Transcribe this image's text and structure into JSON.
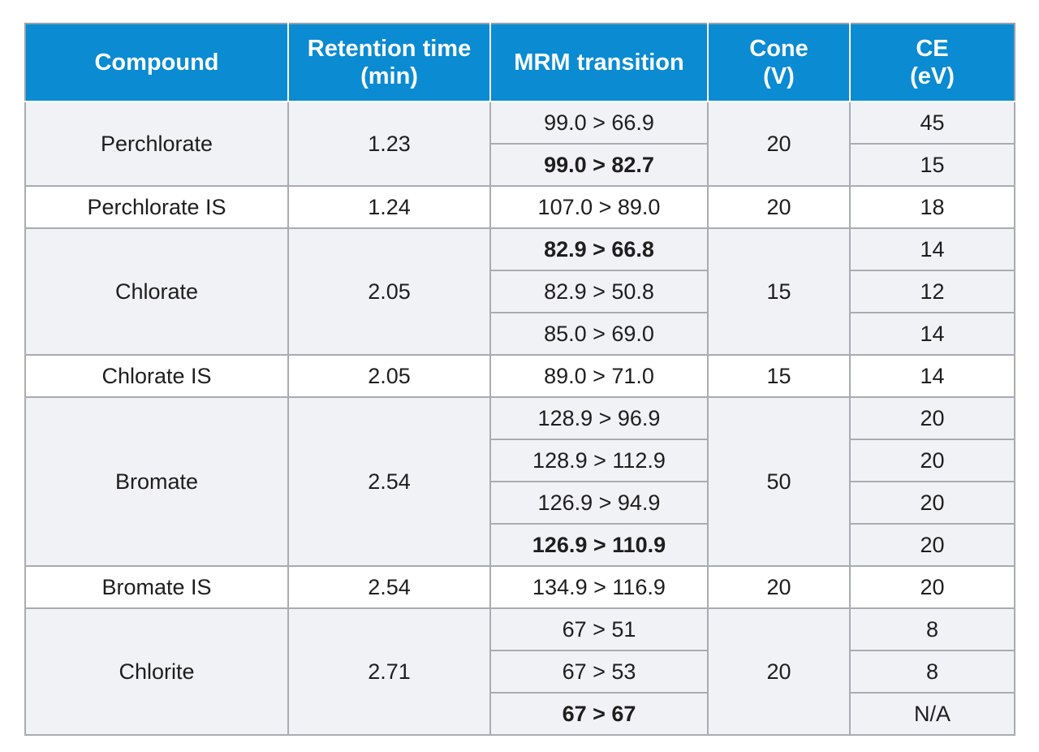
{
  "headers": [
    {
      "line1": "Compound",
      "line2": ""
    },
    {
      "line1": "Retention time",
      "line2": "(min)"
    },
    {
      "line1": "MRM transition",
      "line2": ""
    },
    {
      "line1": "Cone",
      "line2": "(V)"
    },
    {
      "line1": "CE",
      "line2": "(eV)"
    }
  ],
  "rows": [
    {
      "compound": "Perchlorate",
      "rt": "1.23",
      "mrm": "99.0 > 66.9",
      "cone": "20",
      "ce": "45"
    },
    {
      "mrm": "99.0 > 82.7",
      "ce": "15"
    },
    {
      "compound": "Perchlorate IS",
      "rt": "1.24",
      "mrm": "107.0 > 89.0",
      "cone": "20",
      "ce": "18"
    },
    {
      "compound": "Chlorate",
      "rt": "2.05",
      "mrm": "82.9 > 66.8",
      "cone": "15",
      "ce": "14"
    },
    {
      "mrm": "82.9 > 50.8",
      "ce": "12"
    },
    {
      "mrm": "85.0 > 69.0",
      "ce": "14"
    },
    {
      "compound": "Chlorate IS",
      "rt": "2.05",
      "mrm": "89.0 > 71.0",
      "cone": "15",
      "ce": "14"
    },
    {
      "compound": "Bromate",
      "rt": "2.54",
      "mrm": "128.9 > 96.9",
      "cone": "50",
      "ce": "20"
    },
    {
      "mrm": "128.9 > 112.9",
      "ce": "20"
    },
    {
      "mrm": "126.9 > 94.9",
      "ce": "20"
    },
    {
      "mrm": "126.9 > 110.9",
      "ce": "20"
    },
    {
      "compound": "Bromate IS",
      "rt": "2.54",
      "mrm": "134.9 > 116.9",
      "cone": "20",
      "ce": "20"
    },
    {
      "compound": "Chlorite",
      "rt": "2.71",
      "mrm": "67 > 51",
      "cone": "20",
      "ce": "8"
    },
    {
      "mrm": "67 > 53",
      "ce": "8"
    },
    {
      "mrm": "67 > 67",
      "ce": "N/A"
    }
  ],
  "colors": {
    "header_bg": "#0a8bd2",
    "header_text": "#ffffff",
    "group_bg": "#f1f2f5",
    "grid": "#a8acb2"
  }
}
